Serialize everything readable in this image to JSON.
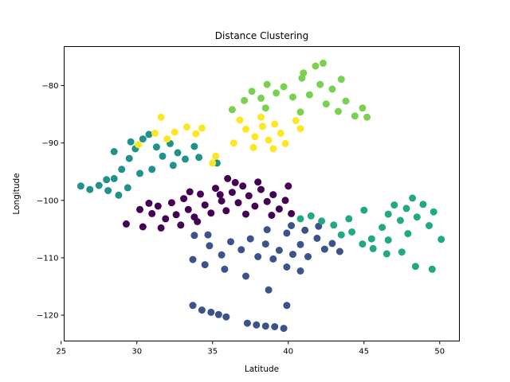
{
  "chart_data": {
    "type": "scatter",
    "title": "Distance Clustering",
    "xlabel": "Latitude",
    "ylabel": "Longitude",
    "xlim": [
      25.2,
      51.3
    ],
    "ylim": [
      -124.5,
      -73.2
    ],
    "xticks": [
      25,
      30,
      35,
      40,
      45,
      50
    ],
    "yticks": [
      -120,
      -110,
      -100,
      -90,
      -80
    ],
    "xtick_labels": [
      "25",
      "30",
      "35",
      "40",
      "45",
      "50"
    ],
    "ytick_labels": [
      "−120",
      "−110",
      "−100",
      "−90",
      "−80"
    ],
    "grid": false,
    "legend": "none",
    "series": [
      {
        "color": "#440154",
        "points": [
          [
            30.2,
            -101.6
          ],
          [
            30.8,
            -100.5
          ],
          [
            31.0,
            -102.3
          ],
          [
            31.4,
            -101.0
          ],
          [
            31.9,
            -103.2
          ],
          [
            32.3,
            -100.4
          ],
          [
            32.6,
            -102.5
          ],
          [
            33.1,
            -99.7
          ],
          [
            33.4,
            -101.6
          ],
          [
            33.8,
            -102.9
          ],
          [
            34.2,
            -98.9
          ],
          [
            34.5,
            -100.8
          ],
          [
            34.9,
            -102.2
          ],
          [
            35.2,
            -97.9
          ],
          [
            35.6,
            -100.1
          ],
          [
            35.9,
            -101.8
          ],
          [
            36.3,
            -98.6
          ],
          [
            36.7,
            -100.4
          ],
          [
            37.0,
            -97.5
          ],
          [
            37.4,
            -99.2
          ],
          [
            37.8,
            -101.0
          ],
          [
            38.2,
            -98.1
          ],
          [
            38.6,
            -100.2
          ],
          [
            39.0,
            -99.0
          ],
          [
            39.4,
            -101.5
          ],
          [
            39.8,
            -100.0
          ],
          [
            40.2,
            -102.3
          ],
          [
            40.0,
            -97.5
          ],
          [
            38.9,
            -102.6
          ],
          [
            37.2,
            -102.4
          ],
          [
            36.5,
            -96.9
          ],
          [
            34.0,
            -103.7
          ],
          [
            31.6,
            -104.8
          ],
          [
            32.9,
            -104.3
          ],
          [
            35.5,
            -99.0
          ],
          [
            33.5,
            -98.5
          ],
          [
            29.3,
            -104.1
          ],
          [
            30.4,
            -104.6
          ],
          [
            36.0,
            -96.2
          ],
          [
            38.0,
            -96.8
          ]
        ]
      },
      {
        "color": "#3b528b",
        "points": [
          [
            33.8,
            -106.1
          ],
          [
            34.7,
            -106.0
          ],
          [
            35.6,
            -109.5
          ],
          [
            36.2,
            -107.2
          ],
          [
            36.9,
            -108.6
          ],
          [
            37.5,
            -106.7
          ],
          [
            38.0,
            -109.8
          ],
          [
            38.5,
            -107.6
          ],
          [
            39.0,
            -110.2
          ],
          [
            39.4,
            -108.7
          ],
          [
            39.9,
            -111.6
          ],
          [
            40.3,
            -109.4
          ],
          [
            40.8,
            -107.7
          ],
          [
            41.3,
            -109.8
          ],
          [
            41.9,
            -106.6
          ],
          [
            42.4,
            -108.5
          ],
          [
            42.9,
            -107.5
          ],
          [
            43.4,
            -108.9
          ],
          [
            40.2,
            -104.4
          ],
          [
            41.1,
            -105.2
          ],
          [
            38.6,
            -105.1
          ],
          [
            37.2,
            -113.2
          ],
          [
            38.7,
            -115.6
          ],
          [
            40.8,
            -112.3
          ],
          [
            33.7,
            -110.3
          ],
          [
            34.5,
            -111.2
          ],
          [
            35.8,
            -112.0
          ],
          [
            34.8,
            -107.9
          ],
          [
            39.9,
            -105.7
          ],
          [
            42.0,
            -104.5
          ],
          [
            33.7,
            -118.3
          ],
          [
            34.3,
            -119.1
          ],
          [
            34.9,
            -119.5
          ],
          [
            35.4,
            -119.9
          ],
          [
            35.9,
            -120.3
          ],
          [
            37.3,
            -121.4
          ],
          [
            37.9,
            -121.7
          ],
          [
            38.5,
            -121.9
          ],
          [
            39.1,
            -122.0
          ],
          [
            39.7,
            -122.3
          ],
          [
            39.9,
            -118.3
          ]
        ]
      },
      {
        "color": "#21918c",
        "points": [
          [
            26.3,
            -97.5
          ],
          [
            26.9,
            -98.1
          ],
          [
            27.5,
            -97.4
          ],
          [
            28.1,
            -98.3
          ],
          [
            28.5,
            -96.2
          ],
          [
            29.0,
            -94.6
          ],
          [
            29.5,
            -92.7
          ],
          [
            29.9,
            -91.0
          ],
          [
            30.4,
            -89.3
          ],
          [
            30.8,
            -88.5
          ],
          [
            31.3,
            -90.7
          ],
          [
            31.7,
            -92.3
          ],
          [
            32.2,
            -90.1
          ],
          [
            32.7,
            -91.7
          ],
          [
            33.2,
            -92.8
          ],
          [
            33.8,
            -90.6
          ],
          [
            29.4,
            -97.8
          ],
          [
            28.8,
            -99.1
          ],
          [
            30.2,
            -95.3
          ],
          [
            31.0,
            -94.6
          ],
          [
            28.5,
            -91.5
          ],
          [
            29.6,
            -89.8
          ],
          [
            32.4,
            -93.9
          ],
          [
            34.1,
            -92.5
          ],
          [
            35.3,
            -93.5
          ],
          [
            28.0,
            -96.4
          ]
        ]
      },
      {
        "color": "#22a884",
        "points": [
          [
            40.8,
            -103.2
          ],
          [
            41.5,
            -102.7
          ],
          [
            42.2,
            -103.6
          ],
          [
            43.0,
            -104.3
          ],
          [
            43.5,
            -106.0
          ],
          [
            44.2,
            -105.5
          ],
          [
            44.9,
            -107.6
          ],
          [
            45.5,
            -106.7
          ],
          [
            46.2,
            -104.7
          ],
          [
            46.6,
            -102.4
          ],
          [
            47.0,
            -100.8
          ],
          [
            47.4,
            -103.5
          ],
          [
            47.8,
            -101.4
          ],
          [
            48.2,
            -99.6
          ],
          [
            48.5,
            -102.9
          ],
          [
            48.9,
            -100.7
          ],
          [
            49.3,
            -104.4
          ],
          [
            49.6,
            -102.0
          ],
          [
            47.9,
            -105.8
          ],
          [
            46.6,
            -106.9
          ],
          [
            45.6,
            -108.4
          ],
          [
            46.5,
            -109.3
          ],
          [
            47.5,
            -109.0
          ],
          [
            48.4,
            -111.5
          ],
          [
            49.5,
            -112.0
          ],
          [
            50.1,
            -106.8
          ],
          [
            45.0,
            -101.7
          ],
          [
            44.0,
            -103.2
          ]
        ]
      },
      {
        "color": "#7ad151",
        "points": [
          [
            37.1,
            -82.6
          ],
          [
            37.6,
            -81.0
          ],
          [
            38.2,
            -82.2
          ],
          [
            38.6,
            -79.8
          ],
          [
            39.2,
            -81.3
          ],
          [
            39.7,
            -80.2
          ],
          [
            40.3,
            -82.0
          ],
          [
            40.9,
            -78.7
          ],
          [
            41.4,
            -81.6
          ],
          [
            41.8,
            -76.6
          ],
          [
            42.1,
            -79.8
          ],
          [
            42.5,
            -83.2
          ],
          [
            42.9,
            -80.6
          ],
          [
            43.3,
            -84.5
          ],
          [
            43.8,
            -82.7
          ],
          [
            44.4,
            -85.3
          ],
          [
            44.9,
            -83.9
          ],
          [
            45.2,
            -85.5
          ],
          [
            38.5,
            -83.9
          ],
          [
            40.8,
            -84.6
          ],
          [
            36.3,
            -84.2
          ],
          [
            42.3,
            -76.1
          ],
          [
            41.0,
            -77.8
          ],
          [
            43.5,
            -78.9
          ]
        ]
      },
      {
        "color": "#fde725",
        "points": [
          [
            31.2,
            -88.3
          ],
          [
            31.6,
            -85.5
          ],
          [
            32.0,
            -89.3
          ],
          [
            32.5,
            -88.1
          ],
          [
            33.3,
            -87.2
          ],
          [
            33.9,
            -88.4
          ],
          [
            34.3,
            -87.4
          ],
          [
            35.2,
            -92.3
          ],
          [
            35.0,
            -93.5
          ],
          [
            36.4,
            -90.0
          ],
          [
            37.2,
            -87.6
          ],
          [
            37.8,
            -88.9
          ],
          [
            38.3,
            -87.1
          ],
          [
            38.7,
            -89.5
          ],
          [
            39.1,
            -86.7
          ],
          [
            39.5,
            -88.3
          ],
          [
            39.8,
            -90.1
          ],
          [
            38.2,
            -85.5
          ],
          [
            39.0,
            -91.0
          ],
          [
            37.7,
            -90.8
          ],
          [
            40.5,
            -86.1
          ],
          [
            40.8,
            -87.5
          ],
          [
            36.8,
            -86.0
          ],
          [
            30.1,
            -90.3
          ]
        ]
      }
    ]
  }
}
